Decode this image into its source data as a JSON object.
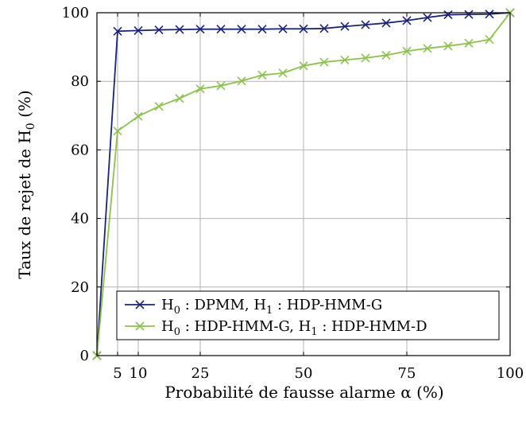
{
  "chart_data": {
    "type": "line",
    "xlabel": "Probabilité de fausse alarme α (%)",
    "ylabel": "Taux de rejet de H",
    "ylabel_sub": "0",
    "ylabel_suffix": " (%)",
    "xlim": [
      0,
      100
    ],
    "ylim": [
      0,
      100
    ],
    "xticks": [
      5,
      10,
      25,
      50,
      75,
      100
    ],
    "xtick_labels": [
      "5",
      "10",
      "25",
      "50",
      "75",
      "100"
    ],
    "yticks": [
      0,
      20,
      40,
      60,
      80,
      100
    ],
    "ytick_labels": [
      "0",
      "20",
      "40",
      "60",
      "80",
      "100"
    ],
    "x": [
      0,
      5,
      10,
      15,
      20,
      25,
      30,
      35,
      40,
      45,
      50,
      55,
      60,
      65,
      70,
      75,
      80,
      85,
      90,
      95,
      100
    ],
    "grid": true,
    "legend_position": "bottom-right",
    "series": [
      {
        "name": "H_0 : DPMM, H_1 : HDP-HMM-G",
        "legend": [
          [
            "H",
            ""
          ],
          [
            "0",
            "sub"
          ],
          [
            " : DPMM, H",
            ""
          ],
          [
            "1",
            "sub"
          ],
          [
            " : HDP-HMM-G",
            ""
          ]
        ],
        "color": "#1a237e",
        "marker": "x",
        "values": [
          0,
          94.6,
          94.8,
          95.0,
          95.1,
          95.2,
          95.2,
          95.2,
          95.2,
          95.3,
          95.3,
          95.4,
          96.0,
          96.5,
          97.0,
          97.7,
          98.6,
          99.4,
          99.5,
          99.6,
          100
        ]
      },
      {
        "name": "H_0 : HDP-HMM-G, H_1 : HDP-HMM-D",
        "legend": [
          [
            "H",
            ""
          ],
          [
            "0",
            "sub"
          ],
          [
            " : HDP-HMM-G, H",
            ""
          ],
          [
            "1",
            "sub"
          ],
          [
            " : HDP-HMM-D",
            ""
          ]
        ],
        "color": "#8bc34a",
        "marker": "x",
        "values": [
          0,
          65.5,
          69.8,
          72.7,
          75.0,
          77.8,
          78.7,
          80.1,
          81.8,
          82.4,
          84.5,
          85.6,
          86.2,
          86.8,
          87.6,
          88.8,
          89.6,
          90.3,
          91.1,
          92.2,
          100
        ]
      }
    ]
  }
}
